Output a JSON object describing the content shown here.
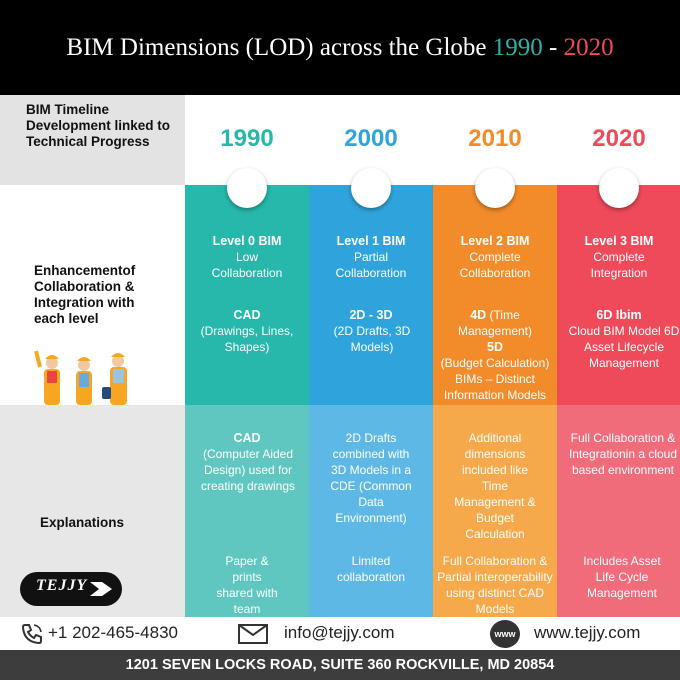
{
  "header": {
    "title_main": "BIM Dimensions (LOD) across the Globe",
    "year_start": "1990",
    "dash": "-",
    "year_end": "2020"
  },
  "colors": {
    "teal": "#27b8ab",
    "blue": "#2fa4dc",
    "orange": "#f28b2a",
    "red": "#ee4a5a"
  },
  "left": {
    "timeline_label": "BIM Timeline Development linked to Technical Progress",
    "enhancement_label": "Enhancementof Collaboration & Integration with each level",
    "explanations_label": "Explanations"
  },
  "columns": [
    {
      "year": "1990",
      "level_title": "Level 0 BIM",
      "level_desc": "Low Collaboration",
      "tech_title": "CAD",
      "tech_desc": "(Drawings, Lines, Shapes)",
      "explanation_title": "CAD",
      "explanation": "(Computer Aided Design) used for creating drawings",
      "note": "Paper & prints shared with team"
    },
    {
      "year": "2000",
      "level_title": "Level 1 BIM",
      "level_desc": "Partial Collaboration",
      "tech_title": "2D - 3D",
      "tech_desc": "(2D Drafts, 3D Models)",
      "explanation": "2D Drafts combined with 3D Models in a CDE (Common Data Environment)",
      "note": "Limited collaboration"
    },
    {
      "year": "2010",
      "level_title": "Level 2 BIM",
      "level_desc": "Complete Collaboration",
      "tech_title": "4D",
      "tech_desc": "(Time Management)",
      "tech_title2": "5D",
      "tech_desc2": "(Budget Calculation) BIMs – Distinct Information Models",
      "explanation": "Additional dimensions included like Time Management & Budget Calculation",
      "note": "Full Collaboration & Partial interoperability using distinct CAD Models"
    },
    {
      "year": "2020",
      "level_title": "Level 3 BIM",
      "level_desc": "Complete Integration",
      "tech_title": "6D Ibim",
      "tech_desc": "Cloud BIM Model 6D Asset Lifecycle Management",
      "explanation": "Full Collaboration & Integrationin a cloud based environment",
      "note": "Includes Asset Life Cycle Management"
    }
  ],
  "logo": {
    "text": "TEJJY"
  },
  "contact": {
    "phone": "+1 202-465-4830",
    "email": "info@tejjy.com",
    "web_icon_text": "www",
    "website": "www.tejjy.com"
  },
  "address": "1201 SEVEN LOCKS ROAD, SUITE 360 ROCKVILLE, MD 20854"
}
